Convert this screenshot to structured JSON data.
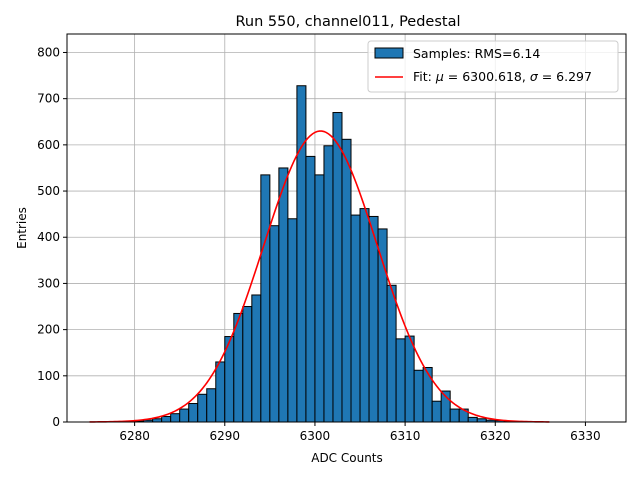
{
  "chart_data": {
    "type": "bar",
    "title": "Run 550, channel011, Pedestal",
    "xlabel": "ADC Counts",
    "ylabel": "Entries",
    "xlim": [
      6272.5,
      6334.5
    ],
    "ylim": [
      0,
      840
    ],
    "grid": true,
    "legend_position": "top-right",
    "x_ticks": [
      6280,
      6290,
      6300,
      6310,
      6320,
      6330
    ],
    "y_ticks": [
      0,
      100,
      200,
      300,
      400,
      500,
      600,
      700,
      800
    ],
    "histogram": {
      "name": "Samples: RMS=6.14",
      "color": "#1f77b4",
      "bin_width": 1,
      "bin_start": 6280,
      "counts": [
        2,
        4,
        7,
        12,
        18,
        28,
        40,
        60,
        72,
        130,
        185,
        235,
        250,
        275,
        535,
        425,
        550,
        440,
        728,
        575,
        535,
        598,
        670,
        612,
        448,
        462,
        445,
        418,
        296,
        180,
        186,
        112,
        118,
        45,
        67,
        28,
        28,
        10,
        7,
        4,
        3,
        2,
        1
      ]
    },
    "fit": {
      "label_prefix": "Fit: ",
      "mu_symbol": "μ",
      "mu_value": " = 6300.618, ",
      "sigma_symbol": "σ",
      "sigma_value": " = 6.297",
      "color": "#ff0000",
      "mu": 6300.618,
      "sigma": 6.297,
      "amplitude": 630,
      "x_range": [
        6275,
        6326
      ]
    }
  }
}
